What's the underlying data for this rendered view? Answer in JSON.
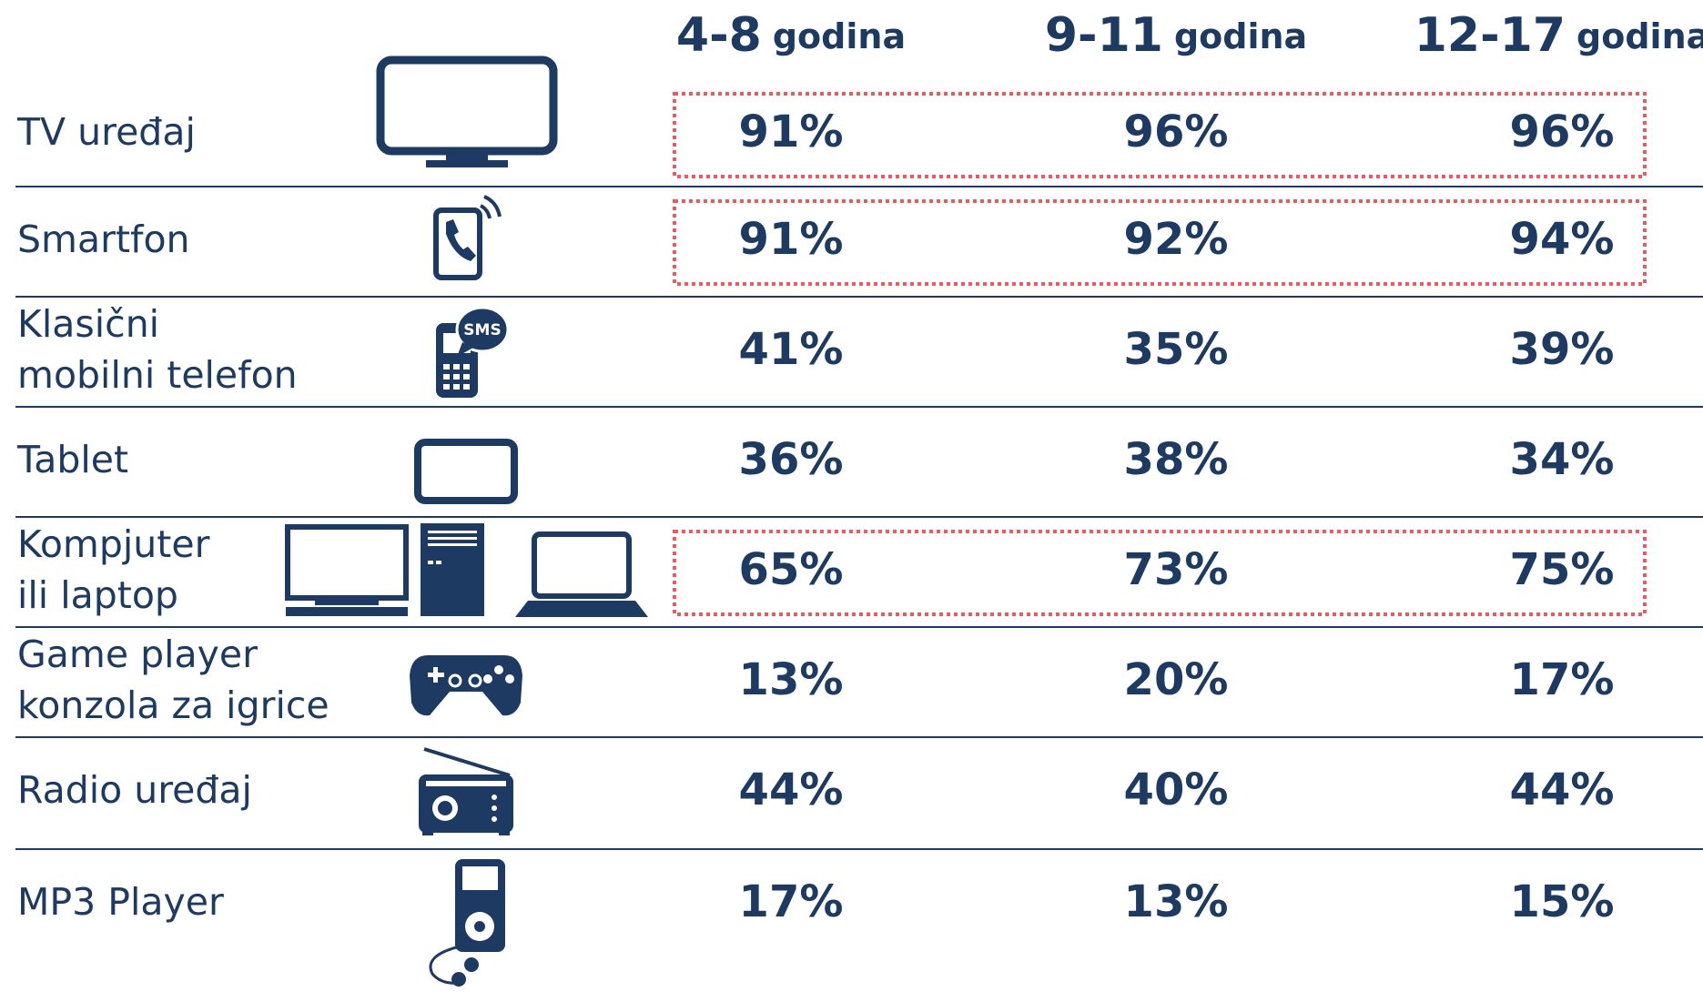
{
  "header": {
    "columns": [
      {
        "range": "4-8",
        "unit": "godina"
      },
      {
        "range": "9-11",
        "unit": "godina"
      },
      {
        "range": "12-17",
        "unit": "godina"
      }
    ]
  },
  "icon_text": "SMS",
  "table": {
    "rows": [
      {
        "label": [
          "TV uređaj"
        ],
        "values": [
          "91%",
          "96%",
          "96%"
        ],
        "highlighted": true
      },
      {
        "label": [
          "Smartfon"
        ],
        "values": [
          "91%",
          "92%",
          "94%"
        ],
        "highlighted": true
      },
      {
        "label": [
          "Klasični",
          "mobilni telefon"
        ],
        "values": [
          "41%",
          "35%",
          "39%"
        ],
        "highlighted": false
      },
      {
        "label": [
          "Tablet"
        ],
        "values": [
          "36%",
          "38%",
          "34%"
        ],
        "highlighted": false
      },
      {
        "label": [
          "Kompjuter",
          "ili laptop"
        ],
        "values": [
          "65%",
          "73%",
          "75%"
        ],
        "highlighted": true
      },
      {
        "label": [
          "Game player",
          "konzola za igrice"
        ],
        "values": [
          "13%",
          "20%",
          "17%"
        ],
        "highlighted": false
      },
      {
        "label": [
          "Radio uređaj"
        ],
        "values": [
          "44%",
          "40%",
          "44%"
        ],
        "highlighted": false
      },
      {
        "label": [
          "MP3 Player"
        ],
        "values": [
          "17%",
          "13%",
          "15%"
        ],
        "highlighted": false
      }
    ]
  }
}
